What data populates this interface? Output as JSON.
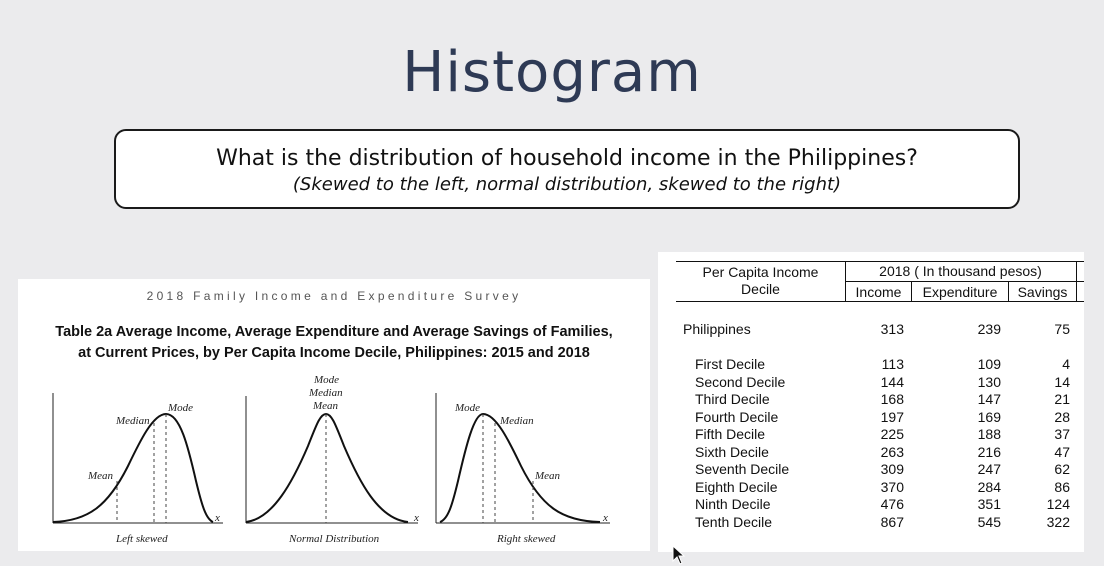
{
  "slide": {
    "title": "Histogram",
    "question": "What is the distribution of household income in the Philippines?",
    "options": "(Skewed to the left, normal distribution, skewed to the right)"
  },
  "survey": {
    "name": "2018 Family Income and Expenditure Survey",
    "table_title_line1": "Table 2a  Average  Income, Average Expenditure and  Average Savings of Families,",
    "table_title_line2": "at Current Prices, by Per Capita Income Decile, Philippines:  2015 and 2018"
  },
  "skew_diagrams": [
    {
      "caption": "Left skewed",
      "labels": {
        "mode": "Mode",
        "median": "Median",
        "mean": "Mean",
        "axis": "x"
      }
    },
    {
      "caption": "Normal Distribution",
      "labels": {
        "mode": "Mode",
        "median": "Median",
        "mean": "Mean",
        "axis": "x"
      }
    },
    {
      "caption": "Right skewed",
      "labels": {
        "mode": "Mode",
        "median": "Median",
        "mean": "Mean",
        "axis": "x"
      }
    }
  ],
  "income_table": {
    "row_header_line1": "Per Capita Income",
    "row_header_line2": "Decile",
    "group_header": "2018 ( In thousand pesos)",
    "columns": [
      "Income",
      "Expenditure",
      "Savings"
    ],
    "total": {
      "label": "Philippines",
      "values": [
        "313",
        "239",
        "75"
      ]
    },
    "rows": [
      {
        "label": "First Decile",
        "values": [
          "113",
          "109",
          "4"
        ]
      },
      {
        "label": "Second Decile",
        "values": [
          "144",
          "130",
          "14"
        ]
      },
      {
        "label": "Third Decile",
        "values": [
          "168",
          "147",
          "21"
        ]
      },
      {
        "label": "Fourth Decile",
        "values": [
          "197",
          "169",
          "28"
        ]
      },
      {
        "label": "Fifth Decile",
        "values": [
          "225",
          "188",
          "37"
        ]
      },
      {
        "label": "Sixth Decile",
        "values": [
          "263",
          "216",
          "47"
        ]
      },
      {
        "label": "Seventh Decile",
        "values": [
          "309",
          "247",
          "62"
        ]
      },
      {
        "label": "Eighth Decile",
        "values": [
          "370",
          "284",
          "86"
        ]
      },
      {
        "label": "Ninth Decile",
        "values": [
          "476",
          "351",
          "124"
        ]
      },
      {
        "label": "Tenth Decile",
        "values": [
          "867",
          "545",
          "322"
        ]
      }
    ]
  }
}
